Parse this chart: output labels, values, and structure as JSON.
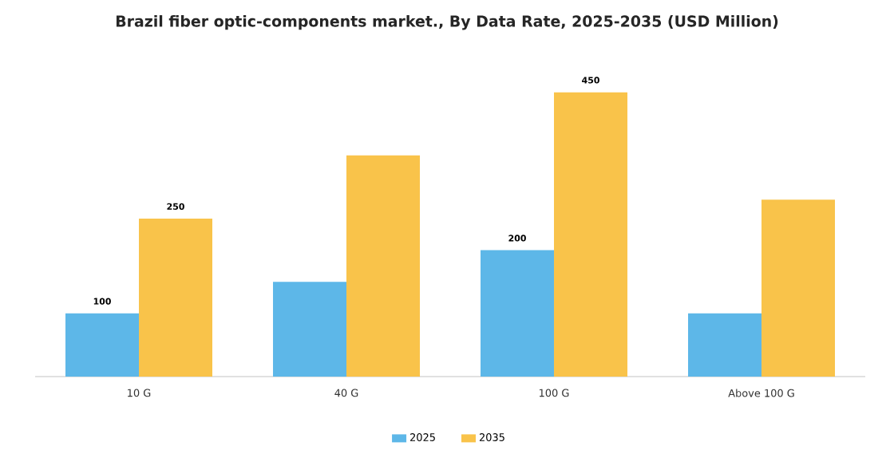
{
  "chart_data": {
    "type": "bar",
    "title": "Brazil fiber optic-components market., By Data Rate, 2025-2035 (USD Million)",
    "categories": [
      "10 G",
      "40 G",
      "100 G",
      "Above 100 G"
    ],
    "series": [
      {
        "name": "2025",
        "color": "#5db7e8",
        "values": [
          100,
          150,
          200,
          100
        ],
        "value_labels": [
          "100",
          null,
          "200",
          null
        ]
      },
      {
        "name": "2035",
        "color": "#f9c34a",
        "values": [
          250,
          350,
          450,
          280
        ],
        "value_labels": [
          "250",
          null,
          "450",
          null
        ]
      }
    ],
    "legend": "bottom"
  }
}
